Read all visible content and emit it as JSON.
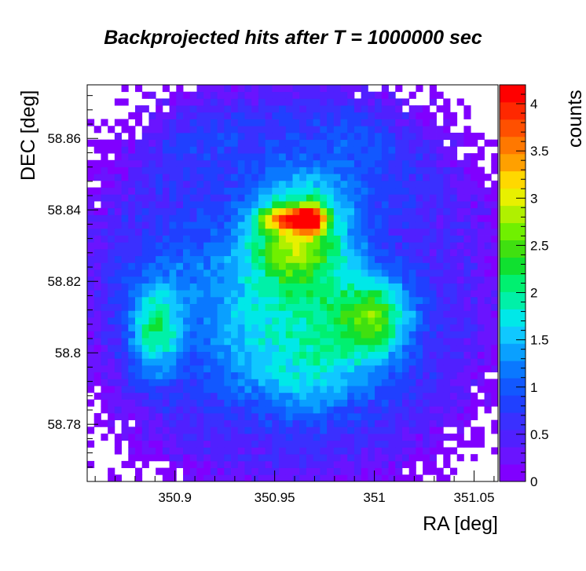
{
  "chart_data": {
    "type": "heatmap",
    "title": "Backprojected hits after T = 1000000 sec",
    "xlabel": "RA [deg]",
    "ylabel": "DEC [deg]",
    "zlabel": "counts",
    "xlim": [
      350.856,
      351.062
    ],
    "ylim": [
      58.764,
      58.875
    ],
    "zlim": [
      0,
      4.2
    ],
    "xticks": [
      350.9,
      350.95,
      351,
      351.05
    ],
    "xtick_labels": [
      "350.9",
      "350.95",
      "351",
      "351.05"
    ],
    "yticks": [
      58.78,
      58.8,
      58.82,
      58.84,
      58.86
    ],
    "ytick_labels": [
      "58.78",
      "58.8",
      "58.82",
      "58.84",
      "58.86"
    ],
    "ztick_labels": [
      "0",
      "0.5",
      "1",
      "1.5",
      "2",
      "2.5",
      "3",
      "3.5",
      "4"
    ],
    "grid": false,
    "legend": "colorbar-right",
    "colormap": [
      "#8000ff",
      "#6a14ff",
      "#5020ff",
      "#3a30ff",
      "#2040ff",
      "#1258ff",
      "#0a78ff",
      "#0aa0ff",
      "#10c8ff",
      "#00e8e8",
      "#00f0a8",
      "#00f070",
      "#10e030",
      "#40e010",
      "#70f000",
      "#b0f000",
      "#e8f000",
      "#ffd800",
      "#ffa000",
      "#ff7800",
      "#ff5000",
      "#ff2800",
      "#ff0000"
    ],
    "base_level": 0.45,
    "blobs": [
      {
        "ra": 350.968,
        "dec": 58.8375,
        "amp": 2.35,
        "sra": 0.005,
        "sdec": 0.0025
      },
      {
        "ra": 350.955,
        "dec": 58.8375,
        "amp": 1.55,
        "sra": 0.009,
        "sdec": 0.0022
      },
      {
        "ra": 350.962,
        "dec": 58.832,
        "amp": 2.15,
        "sra": 0.018,
        "sdec": 0.011
      },
      {
        "ra": 351.0,
        "dec": 58.81,
        "amp": 1.85,
        "sra": 0.015,
        "sdec": 0.009
      },
      {
        "ra": 350.89,
        "dec": 58.806,
        "amp": 1.45,
        "sra": 0.009,
        "sdec": 0.009
      },
      {
        "ra": 350.94,
        "dec": 58.804,
        "amp": 0.75,
        "sra": 0.022,
        "sdec": 0.011
      },
      {
        "ra": 350.972,
        "dec": 58.801,
        "amp": 0.85,
        "sra": 0.018,
        "sdec": 0.013
      },
      {
        "ra": 350.915,
        "dec": 58.822,
        "amp": 0.65,
        "sra": 0.03,
        "sdec": 0.012
      },
      {
        "ra": 350.985,
        "dec": 58.855,
        "amp": 0.45,
        "sra": 0.03,
        "sdec": 0.014
      },
      {
        "ra": 350.91,
        "dec": 58.86,
        "amp": 0.35,
        "sra": 0.02,
        "sdec": 0.01
      },
      {
        "ra": 350.96,
        "dec": 58.79,
        "amp": 0.35,
        "sra": 0.04,
        "sdec": 0.008
      }
    ],
    "radial_falloff": {
      "center_ra": 350.958,
      "center_dec": 58.818,
      "radius": 0.88,
      "strength": 0.55
    }
  }
}
